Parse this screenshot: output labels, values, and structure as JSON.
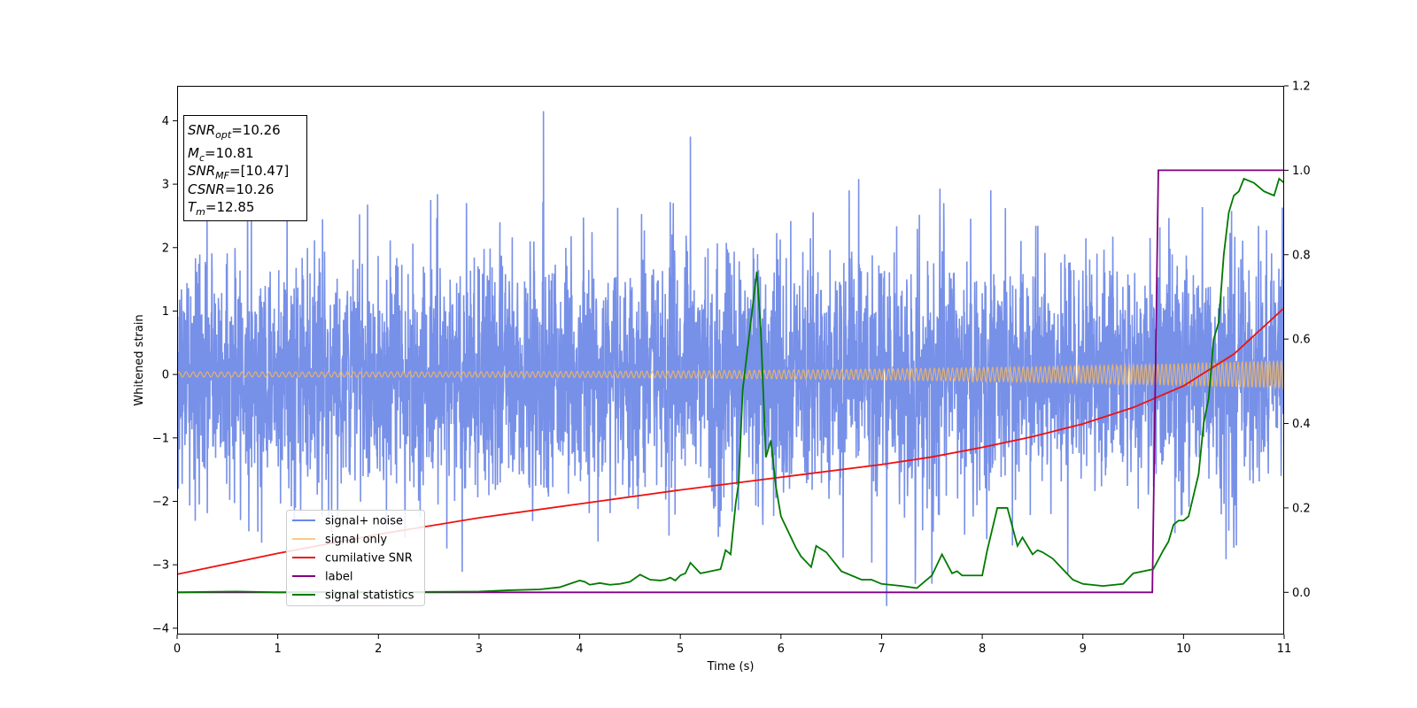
{
  "chart_data": {
    "type": "line",
    "xlabel": "Time (s)",
    "ylabel": "Whitened strain",
    "xlim": [
      0,
      11
    ],
    "ylim_left": [
      -4.1,
      4.55
    ],
    "ylim_right": [
      -0.1,
      1.2
    ],
    "xticks": [
      "0",
      "1",
      "2",
      "3",
      "4",
      "5",
      "6",
      "7",
      "8",
      "9",
      "10",
      "11"
    ],
    "yticks_left": [
      "−4",
      "−3",
      "−2",
      "−1",
      "0",
      "1",
      "2",
      "3",
      "4"
    ],
    "yticks_right": [
      "0.0",
      "0.2",
      "0.4",
      "0.6",
      "0.8",
      "1.0",
      "1.2"
    ],
    "grid": false,
    "legend_position": "lower-left",
    "colors": {
      "noise": "#6b87e6",
      "signal": "#f5b860",
      "csnr": "#ee1111",
      "label": "#800080",
      "stats": "#007a00"
    },
    "annotation": {
      "snr_opt": {
        "base": "SNR",
        "sub": "opt",
        "value": "=10.26"
      },
      "mc": {
        "base": "M",
        "sub": "c",
        "value": "=10.81"
      },
      "snr_mf": {
        "base": "SNR",
        "sub": "MF",
        "value": "=[10.47]"
      },
      "csnr": {
        "base": "CSNR",
        "value": "=10.26"
      },
      "tm": {
        "base": "T",
        "sub": "m",
        "value": "=12.85"
      }
    },
    "series": [
      {
        "name": "signal+ noise",
        "axis": "left",
        "description_stats": {
          "noise_std": 1.0,
          "range": [
            -3.65,
            4.15
          ],
          "notable_spikes": [
            [
              3.64,
              4.15
            ],
            [
              5.1,
              3.75
            ],
            [
              7.05,
              -3.65
            ]
          ]
        }
      },
      {
        "name": "signal only",
        "axis": "left",
        "chirp": {
          "amp_start": 0.04,
          "amp_end": 0.22,
          "freq_start": 14,
          "freq_end": 26
        }
      },
      {
        "name": "cumilative SNR",
        "axis": "left",
        "x": [
          0,
          1,
          2,
          3,
          4,
          5,
          6,
          7,
          7.5,
          8,
          8.5,
          9,
          9.5,
          10,
          10.5,
          11
        ],
        "y": [
          -3.15,
          -2.82,
          -2.52,
          -2.26,
          -2.04,
          -1.82,
          -1.62,
          -1.42,
          -1.3,
          -1.15,
          -0.98,
          -0.78,
          -0.52,
          -0.18,
          0.32,
          1.05
        ]
      },
      {
        "name": "label",
        "axis": "right",
        "x": [
          0,
          9.69,
          9.75,
          11
        ],
        "y": [
          0,
          0,
          1,
          1
        ]
      },
      {
        "name": "signal statistics",
        "axis": "right",
        "x": [
          0,
          0.3,
          0.6,
          1.0,
          1.5,
          2.0,
          2.5,
          3.0,
          3.3,
          3.6,
          3.8,
          3.9,
          4.0,
          4.05,
          4.1,
          4.2,
          4.3,
          4.4,
          4.5,
          4.6,
          4.7,
          4.8,
          4.85,
          4.9,
          4.95,
          5.0,
          5.05,
          5.1,
          5.2,
          5.3,
          5.4,
          5.45,
          5.5,
          5.55,
          5.58,
          5.62,
          5.66,
          5.72,
          5.76,
          5.8,
          5.85,
          5.9,
          5.95,
          6.0,
          6.1,
          6.15,
          6.2,
          6.3,
          6.35,
          6.45,
          6.5,
          6.6,
          6.8,
          6.9,
          7.0,
          7.2,
          7.35,
          7.5,
          7.6,
          7.7,
          7.75,
          7.8,
          7.9,
          8.0,
          8.05,
          8.15,
          8.25,
          8.35,
          8.4,
          8.5,
          8.55,
          8.6,
          8.7,
          8.8,
          8.9,
          9.0,
          9.2,
          9.4,
          9.5,
          9.6,
          9.7,
          9.8,
          9.85,
          9.9,
          9.95,
          10.0,
          10.05,
          10.1,
          10.15,
          10.2,
          10.25,
          10.3,
          10.35,
          10.4,
          10.45,
          10.5,
          10.55,
          10.6,
          10.7,
          10.8,
          10.9,
          10.95,
          11.0
        ],
        "y": [
          0.0,
          0.001,
          0.002,
          0.0,
          0.001,
          0.0,
          0.001,
          0.002,
          0.005,
          0.007,
          0.012,
          0.02,
          0.028,
          0.025,
          0.018,
          0.022,
          0.018,
          0.02,
          0.025,
          0.042,
          0.03,
          0.028,
          0.03,
          0.035,
          0.028,
          0.04,
          0.045,
          0.07,
          0.045,
          0.05,
          0.055,
          0.1,
          0.09,
          0.21,
          0.26,
          0.48,
          0.56,
          0.68,
          0.76,
          0.62,
          0.32,
          0.36,
          0.25,
          0.18,
          0.13,
          0.105,
          0.085,
          0.06,
          0.11,
          0.095,
          0.08,
          0.05,
          0.03,
          0.03,
          0.02,
          0.015,
          0.01,
          0.04,
          0.09,
          0.045,
          0.05,
          0.04,
          0.04,
          0.04,
          0.1,
          0.2,
          0.2,
          0.11,
          0.13,
          0.09,
          0.1,
          0.095,
          0.08,
          0.055,
          0.03,
          0.02,
          0.015,
          0.02,
          0.045,
          0.05,
          0.055,
          0.1,
          0.12,
          0.16,
          0.17,
          0.17,
          0.18,
          0.23,
          0.28,
          0.4,
          0.46,
          0.6,
          0.64,
          0.8,
          0.9,
          0.94,
          0.95,
          0.98,
          0.97,
          0.95,
          0.94,
          0.98,
          0.97
        ]
      }
    ]
  }
}
